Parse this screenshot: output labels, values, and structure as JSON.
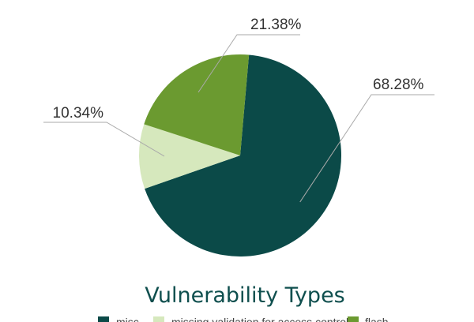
{
  "chart_data": {
    "type": "pie",
    "title": "Vulnerability Types",
    "slices": [
      {
        "label": "misc",
        "value": 68.28,
        "display": "68.28%",
        "color": "#0b4a48"
      },
      {
        "label": "missing validation for access control",
        "value": 10.34,
        "display": "10.34%",
        "color": "#d6e8bd"
      },
      {
        "label": "flash",
        "value": 21.38,
        "display": "21.38%",
        "color": "#6b9a30"
      }
    ],
    "legend_position": "bottom",
    "leader_line_color": "#aaaaaa",
    "title_color": "#0f4f4e"
  }
}
